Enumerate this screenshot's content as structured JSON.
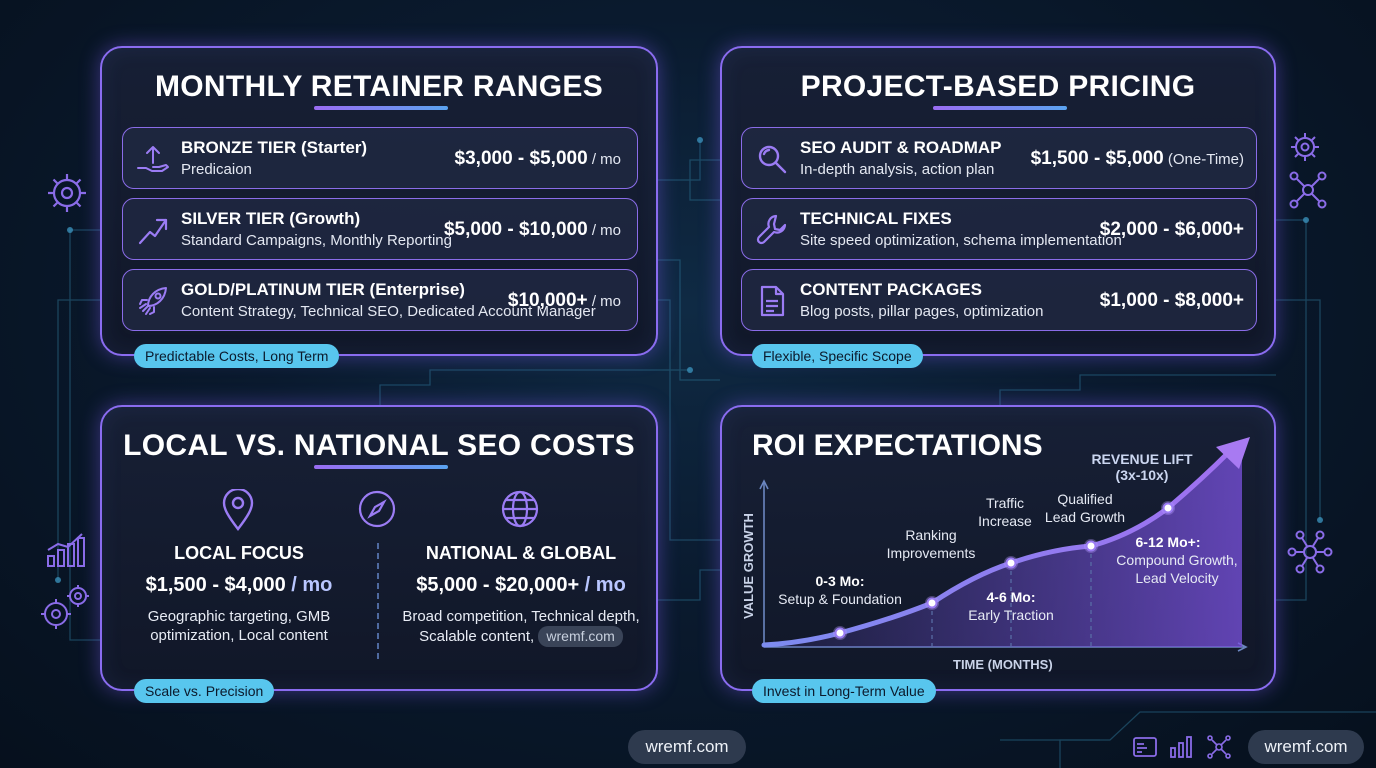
{
  "retainer": {
    "title": "MONTHLY RETAINER RANGES",
    "tag": "Predictable Costs, Long Term",
    "tiers": [
      {
        "icon": "hand-arrow-up-icon",
        "name": "BRONZE TIER (Starter)",
        "desc": "Predicaion",
        "price": "$3,000 - $5,000",
        "unit": " / mo"
      },
      {
        "icon": "trend-arrow-icon",
        "name": "SILVER TIER (Growth)",
        "desc": "Standard Campaigns, Monthly Reporting",
        "price": "$5,000 - $10,000",
        "unit": " / mo"
      },
      {
        "icon": "rocket-icon",
        "name": "GOLD/PLATINUM TIER (Enterprise)",
        "desc": "Content Strategy, Technical SEO, Dedicated Account Manager",
        "price": "$10,000+",
        "unit": " / mo"
      }
    ]
  },
  "project": {
    "title": "PROJECT-BASED PRICING",
    "tag": "Flexible, Specific Scope",
    "items": [
      {
        "icon": "magnifier-icon",
        "name": "SEO AUDIT & ROADMAP",
        "desc": "In-depth analysis, action plan",
        "price": "$1,500 - $5,000",
        "unit": " (One-Time)"
      },
      {
        "icon": "wrench-icon",
        "name": "TECHNICAL FIXES",
        "desc": "Site speed optimization, schema implementation",
        "price": "$2,000 - $6,000+",
        "unit": ""
      },
      {
        "icon": "document-icon",
        "name": "CONTENT PACKAGES",
        "desc": "Blog posts, pillar pages, optimization",
        "price": "$1,000 - $8,000+",
        "unit": ""
      }
    ]
  },
  "local_national": {
    "title": "LOCAL VS. NATIONAL SEO COSTS",
    "tag": "Scale vs. Precision",
    "local": {
      "title": "LOCAL FOCUS",
      "price": "$1,500 - $4,000",
      "unit": " / mo",
      "desc1": "Geographic targeting, GMB",
      "desc2": "optimization, Local content"
    },
    "national": {
      "title": "NATIONAL & GLOBAL",
      "price": "$5,000 - $20,000+",
      "unit": " / mo",
      "desc1": "Broad competition, Technical depth,",
      "desc2": "Scalable content,",
      "pill": "wremf.com"
    }
  },
  "roi": {
    "title": "ROI EXPECTATIONS",
    "tag": "Invest in Long-Term Value",
    "chart_data": {
      "type": "line",
      "xlabel": "TIME (MONTHS)",
      "ylabel": "VALUE GROWTH",
      "points": [
        {
          "x": 1,
          "y": 1,
          "label1": "0-3 Mo:",
          "label2": "Setup & Foundation"
        },
        {
          "x": 2,
          "y": 2,
          "label1": "Ranking",
          "label2": "Improvements"
        },
        {
          "x": 3,
          "y": 3.5,
          "label1": "Traffic",
          "label2": "Increase",
          "sub1": "4-6 Mo:",
          "sub2": "Early Traction"
        },
        {
          "x": 4,
          "y": 4.5,
          "label1": "Qualified",
          "label2": "Lead Growth"
        },
        {
          "x": 5,
          "y": 6.5,
          "label1": "6-12 Mo+:",
          "label2": "Compound Growth,",
          "label3": "Lead Velocity"
        }
      ],
      "peak": {
        "label1": "REVENUE LIFT",
        "label2": "(3x-10x)"
      }
    }
  },
  "footer": {
    "center_label": "wremf.com",
    "right_label": "wremf.com"
  }
}
